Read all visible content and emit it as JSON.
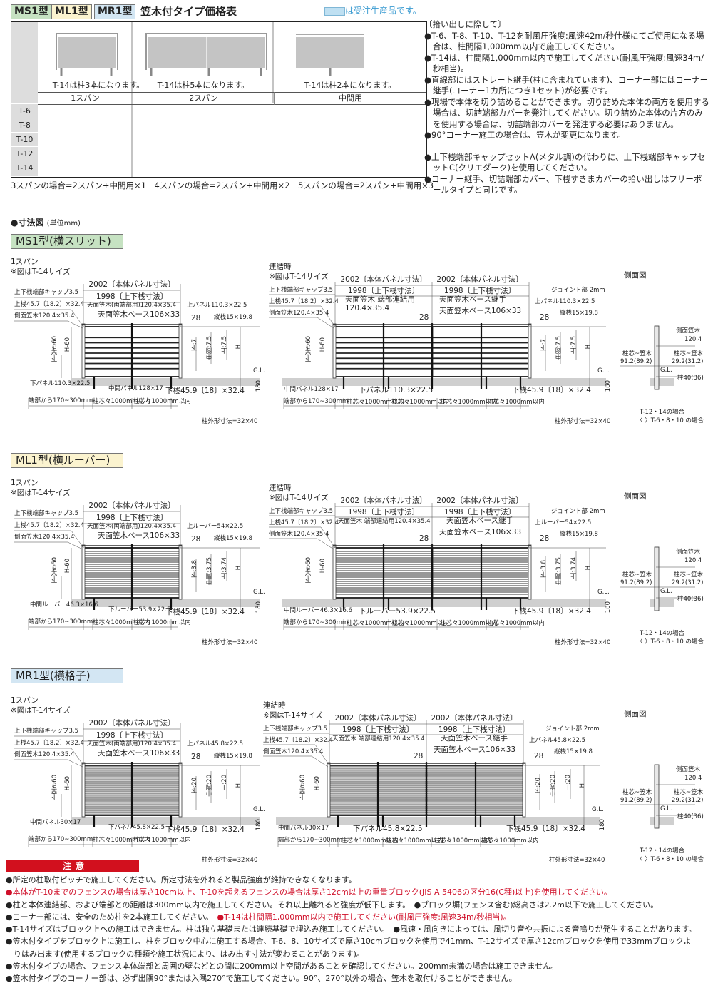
{
  "header": {
    "tabs": [
      {
        "label": "MS1型",
        "color": "#c6e2c2"
      },
      {
        "label": "ML1型",
        "color": "#fbf3cf"
      },
      {
        "label": "MR1型",
        "color": "#d3e6f3"
      }
    ],
    "title": "笠木付タイプ価格表",
    "legend_text": "は受注生産品です。",
    "legend_color": "#bfe0f2"
  },
  "price_table": {
    "thumb_notes": [
      "T-14は柱3本になります。",
      "T-14は柱5本になります。",
      "T-14は柱2本になります。"
    ],
    "columns": [
      "1スパン",
      "2スパン",
      "中間用"
    ],
    "rows": [
      "T-6",
      "T-8",
      "T-10",
      "T-12",
      "T-14"
    ],
    "footnote": "3スパンの場合=2スパン+中間用×1　4スパンの場合=2スパン+中間用×2　5スパンの場合=2スパン+中間用×3"
  },
  "notes_right": [
    "〔拾い出しに際して〕",
    "●T-6、T-8、T-10、T-12を耐風圧強度:風速42m/秒仕様にてご使用になる場合は、柱間隔1,000mm以内で施工してください。",
    "●T-14は、柱間隔1,000mm以内で施工してください(耐風圧強度:風速34m/秒相当)。",
    "●直線部にはストレート継手(柱に含まれています)、コーナー部にはコーナー継手(コーナー1カ所につき1セット)が必要です。",
    "●現場で本体を切り詰めることができます。切り詰めた本体の両方を使用する場合は、切詰端部カバーを発注してください。切り詰めた本体の片方のみを使用する場合は、切詰端部カバーを発注する必要はありません。",
    "●90°コーナー施工の場合は、笠木が変更になります。",
    "",
    "●上下桟端部キャップセットA(メタル調)の代わりに、上下桟端部キャップセットC(クリエダーク)を使用してください。",
    "●コーナー継手、切詰端部カバー、下桟すきまカバーの拾い出しはフリーボールタイプと同じです。"
  ],
  "dim_heading": {
    "title": "●寸法図",
    "unit": "(単位mm)"
  },
  "sections": [
    {
      "heading": "MS1型(横スリット)",
      "color": "#c6e2c2",
      "infill": "slit",
      "span1": {
        "title": "1スパン",
        "note": "※図はT-14サイズ",
        "panel_width": "2002〔本体パネル寸法〕",
        "rail_width": "1998〔上下桟寸法〕",
        "cap": "上下桟端部キャップ3.5",
        "top_rail": "上桟45.7〔18.2〕×32.4",
        "side_kasagi": "側面笠木120.4×35.4",
        "top_kasagi": "天面笠木(両端部用)120.4×35.4",
        "kasagi_base": "天面笠木ベース106×33",
        "top_panel": "上パネル110.3×22.5",
        "pitch": "28",
        "vbar": "縦桟15×19.8",
        "gap": "下空き60",
        "h60": "H-60",
        "lower": "下:7",
        "middle": "中間:7.5",
        "upper": "上:7.5",
        "h": "H",
        "gl": "G.L.",
        "part_left": "下パネル110.3×22.5",
        "part_center": "中間パネル128×17",
        "bottom_rail": "下桟45.9〔18〕×32.4",
        "depth": "180",
        "end_dist": "端部から170~300mm",
        "post_pitch": "柱芯々1000mm以内",
        "post_size": "柱外形寸法=32×40"
      },
      "joined": {
        "title": "連結時",
        "note": "※図はT-14サイズ",
        "panel_width": "2002〔本体パネル寸法〕",
        "rail_width": "1998〔上下桟寸法〕",
        "joint": "ジョイント部 2mm",
        "cap": "上下桟端部キャップ3.5",
        "top_rail": "上桟45.7〔18.2〕×32.4",
        "side_kasagi": "側面笠木120.4×35.4",
        "end_kasagi": "天面笠木 端部連結用\n120.4×35.4",
        "base_joint": "天面笠木ベース継手",
        "kasagi_base": "天面笠木ベース106×33",
        "top_panel": "上パネル110.3×22.5",
        "pitch": "28",
        "vbar": "縦桟15×19.8",
        "gap": "下空き60",
        "h60": "H-60",
        "lower": "下:7",
        "middle": "中間:7.5",
        "upper": "上:7.5",
        "h": "H",
        "gl": "G.L.",
        "part_left": "中間パネル128×17",
        "part_center": "下パネル110.3×22.5",
        "bottom_rail": "下桟45.9〔18〕×32.4",
        "depth": "180",
        "end_dist": "端部から170~300mm",
        "post_pitch": "柱芯々1000mm以内",
        "post_size": "柱外形寸法=32×40"
      },
      "side": {
        "title": "側面図",
        "kasagi_label": "側面笠木",
        "kasagi_val": "120.4",
        "left_label": "柱芯~笠木",
        "left_val": "91.2(89.2)",
        "right_label": "柱芯~笠木",
        "right_val": "29.2(31.2)",
        "gl": "G.L.",
        "post": "柱40(36)",
        "note1": "T-12・14の場合",
        "note2": "〈 〉T-6・8・10 の場合"
      }
    },
    {
      "heading": "ML1型(横ルーバー)",
      "color": "#fbf3cf",
      "infill": "louver",
      "span1": {
        "title": "1スパン",
        "note": "※図はT-14サイズ",
        "panel_width": "2002〔本体パネル寸法〕",
        "rail_width": "1998〔上下桟寸法〕",
        "cap": "上下桟端部キャップ3.5",
        "top_rail": "上桟45.7〔18.2〕×32.4",
        "side_kasagi": "側面笠木120.4×35.4",
        "top_kasagi": "天面笠木(両端部用)120.4×35.4",
        "kasagi_base": "天面笠木ベース106×33",
        "top_panel": "上ルーバー54×22.5",
        "pitch": "28",
        "vbar": "縦桟15×19.8",
        "gap": "下空き60",
        "h60": "H-60",
        "lower": "下:3.8",
        "middle": "中間:3.75",
        "upper": "上:3.74",
        "h": "H",
        "gl": "G.L.",
        "part_left": "中間ルーバー46.3×16.6",
        "part_center": "下ルーバー53.9×22.5",
        "bottom_rail": "下桟45.9〔18〕×32.4",
        "depth": "180",
        "end_dist": "端部から170~300mm",
        "post_pitch": "柱芯々1000mm以内",
        "post_size": "柱外形寸法=32×40"
      },
      "joined": {
        "title": "連結時",
        "note": "※図はT-14サイズ",
        "panel_width": "2002〔本体パネル寸法〕",
        "rail_width": "1998〔上下桟寸法〕",
        "joint": "ジョイント部 2mm",
        "cap": "上下桟端部キャップ3.5",
        "top_rail": "上桟45.7〔18.2〕×32.4",
        "side_kasagi": "側面笠木120.4×35.4",
        "end_kasagi": "天面笠木 端部連結用120.4×35.4",
        "base_joint": "天面笠木ベース継手",
        "kasagi_base": "天面笠木ベース106×33",
        "top_panel": "上ルーバー54×22.5",
        "pitch": "28",
        "vbar": "縦桟15×19.8",
        "gap": "下空き60",
        "h60": "H-60",
        "lower": "下:3.8",
        "middle": "中間:3.75",
        "upper": "上:3.74",
        "h": "H",
        "gl": "G.L.",
        "part_left": "中間ルーバー46.3×16.6",
        "part_center": "下ルーバー53.9×22.5",
        "bottom_rail": "下桟45.9〔18〕×32.4",
        "depth": "180",
        "end_dist": "端部から170~300mm",
        "post_pitch": "柱芯々1000mm以内",
        "post_size": "柱外形寸法=32×40"
      },
      "side": {
        "title": "側面図",
        "kasagi_label": "側面笠木",
        "kasagi_val": "120.4",
        "left_label": "柱芯~笠木",
        "left_val": "91.2(89.2)",
        "right_label": "柱芯~笠木",
        "right_val": "29.2(31.2)",
        "gl": "G.L.",
        "post": "柱40(36)",
        "note1": "T-12・14の場合",
        "note2": "〈 〉T-6・8・10 の場合"
      }
    },
    {
      "heading": "MR1型(横格子)",
      "color": "#d3e6f3",
      "infill": "lattice",
      "span1": {
        "title": "1スパン",
        "note": "※図はT-14サイズ",
        "panel_width": "2002〔本体パネル寸法〕",
        "rail_width": "1998〔上下桟寸法〕",
        "cap": "上下桟端部キャップ3.5",
        "top_rail": "上桟45.7〔18.2〕×32.4",
        "side_kasagi": "側面笠木120.4×35.4",
        "top_kasagi": "天面笠木(両端部用)120.4×35.4",
        "kasagi_base": "天面笠木ベース106×33",
        "top_panel": "上パネル45.8×22.5",
        "pitch": "28",
        "vbar": "縦桟15×19.8",
        "gap": "下空き60",
        "h60": "H-60",
        "lower": "下:20",
        "middle": "中間:20",
        "upper": "上:20",
        "h": "H",
        "gl": "G.L.",
        "part_left": "中間パネル30×17",
        "part_center": "下パネル45.8×22.5",
        "bottom_rail": "下桟45.9〔18〕×32.4",
        "depth": "180",
        "end_dist": "端部から170~300mm",
        "post_pitch": "柱芯々1000mm以内",
        "post_size": "柱外形寸法=32×40"
      },
      "joined": {
        "title": "連結時",
        "note": "※図はT-14サイズ",
        "panel_width": "2002〔本体パネル寸法〕",
        "rail_width": "1998〔上下桟寸法〕",
        "joint": "ジョイント部 2mm",
        "cap": "上下桟端部キャップ3.5",
        "top_rail": "上桟45.7〔18.2〕×32.4",
        "side_kasagi": "側面笠木120.4×35.4",
        "end_kasagi": "天面笠木 端部連結用120.4×35.4",
        "base_joint": "天面笠木ベース継手",
        "kasagi_base": "天面笠木ベース106×33",
        "top_panel": "上パネル45.8×22.5",
        "pitch": "28",
        "vbar": "縦桟15×19.8",
        "gap": "下空き60",
        "h60": "H-60",
        "lower": "下:20",
        "middle": "中間:20",
        "upper": "上:20",
        "h": "H",
        "gl": "G.L.",
        "part_left": "中間パネル30×17",
        "part_center": "下パネル45.8×22.5",
        "bottom_rail": "下桟45.9〔18〕×32.4",
        "depth": "180",
        "end_dist": "端部から170~300mm",
        "post_pitch": "柱芯々1000mm以内",
        "post_size": "柱外形寸法=32×40"
      },
      "side": {
        "title": "側面図",
        "kasagi_label": "側面笠木",
        "kasagi_val": "120.4",
        "left_label": "柱芯~笠木",
        "left_val": "91.2(89.2)",
        "right_label": "柱芯~笠木",
        "right_val": "29.2(31.2)",
        "gl": "G.L.",
        "post": "柱40(36)",
        "note1": "T-12・14の場合",
        "note2": "〈 〉T-6・8・10 の場合"
      }
    }
  ],
  "caution": {
    "title": "注意",
    "color": "#d2101e",
    "lines": [
      [
        {
          "text": "●所定の柱取付ピッチで施工してください。所定寸法を外れると製品強度が維持できなくなります。",
          "red": false
        }
      ],
      [
        {
          "text": "●本体がT-10までのフェンスの場合は厚さ10cm以上、T-10を超えるフェンスの場合は厚さ12cm以上の重量ブロック(JIS A 5406の区分16(C種)以上)を使用してください。",
          "red": true
        }
      ],
      [
        {
          "text": "●柱と本体連結部、および端部との距離は300mm以内で施工してください。それ以上離れると強度が低下します。　●ブロック塀(フェンス含む)総高さは2.2m以下で施工してください。",
          "red": false
        }
      ],
      [
        {
          "text": "●コーナー部には、安全のため柱を2本施工してください。　",
          "red": false
        },
        {
          "text": "●T-14は柱間隔1,000mm以内で施工してください(耐風圧強度:風速34m/秒相当)。",
          "red": true
        }
      ],
      [
        {
          "text": "●T-14サイズはブロック上への施工はできません。柱は独立基礎または連続基礎で埋込み施工してください。　●風速・風向きによっては、風切り音や共振による音鳴りが発生することがあります。",
          "red": false
        }
      ],
      [
        {
          "text": "●笠木付タイプをブロック上に施工し、柱をブロック中心に施工する場合、T-6、8、10サイズで厚さ10cmブロックを使用で41mm、T-12サイズで厚さ12cmブロックを使用で33mmブロックよ",
          "red": false
        }
      ],
      [
        {
          "text": "　りはみ出ます(使用するブロックの種類や施工状況により、はみ出す寸法が変わることがあります)。",
          "red": false
        }
      ],
      [
        {
          "text": "●笠木付タイプの場合、フェンス本体端部と周囲の壁などとの間に200mm以上空間があることを確認してください。200mm未満の場合は施工できません。",
          "red": false
        }
      ],
      [
        {
          "text": "●笠木付タイプのコーナー部は、必ず出隅90°または入隅270°で施工してください。90°、270°以外の場合、笠木を取付けることができません。",
          "red": false
        }
      ]
    ]
  }
}
